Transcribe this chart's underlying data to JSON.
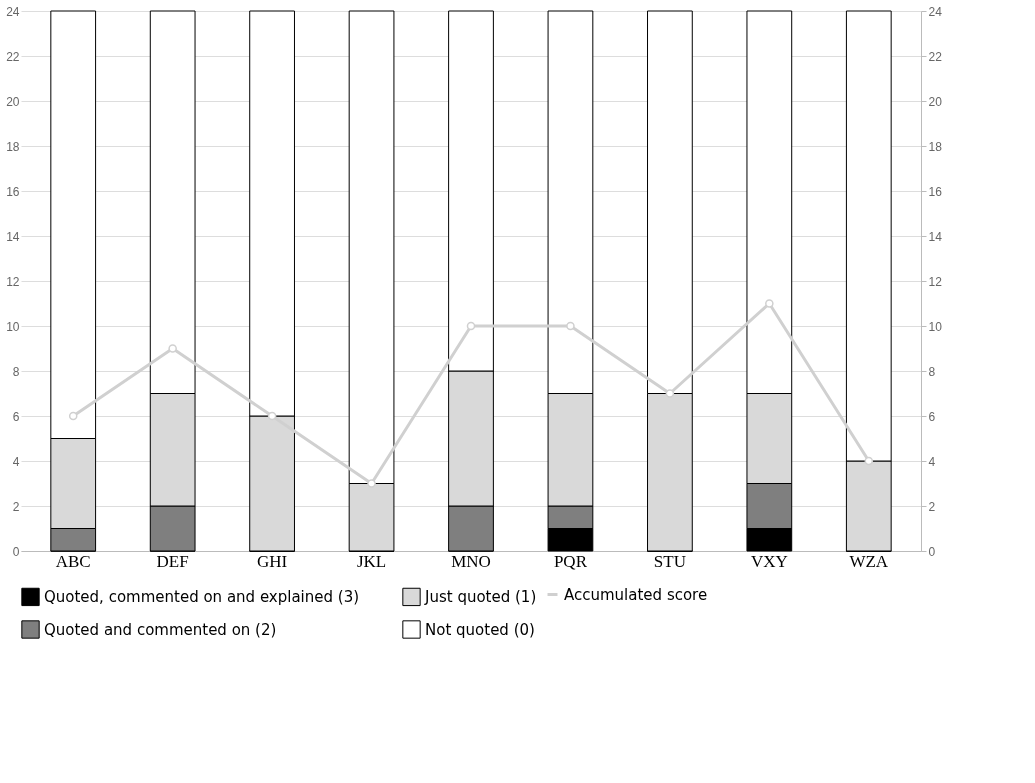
{
  "chart_data": {
    "type": "bar",
    "stacked": true,
    "categories": [
      "ABC",
      "DEF",
      "GHI",
      "JKL",
      "MNO",
      "PQR",
      "STU",
      "VXY",
      "WZA"
    ],
    "series": [
      {
        "name": "Quoted, commented on and explained (3)",
        "color": "#000000",
        "values": [
          0,
          0,
          0,
          0,
          0,
          1,
          0,
          1,
          0
        ]
      },
      {
        "name": "Quoted and commented on (2)",
        "color": "#7f7f7f",
        "values": [
          1,
          2,
          0,
          0,
          2,
          1,
          0,
          2,
          0
        ]
      },
      {
        "name": "Just quoted (1)",
        "color": "#d9d9d9",
        "values": [
          4,
          5,
          6,
          3,
          6,
          5,
          7,
          4,
          4
        ]
      },
      {
        "name": "Not quoted (0)",
        "color": "#ffffff",
        "values": [
          19,
          17,
          18,
          21,
          16,
          17,
          17,
          17,
          20
        ]
      },
      {
        "name": "Accumulated score",
        "type": "line",
        "axis": "y2",
        "color": "#d0d0d0",
        "marker": "circle",
        "values": [
          6,
          9,
          6,
          3,
          10,
          10,
          7,
          11,
          4
        ]
      }
    ],
    "ylim": [
      0,
      24
    ],
    "yticks": [
      0,
      2,
      4,
      6,
      8,
      10,
      12,
      14,
      16,
      18,
      20,
      22,
      24
    ],
    "y2lim": [
      0,
      24
    ],
    "y2ticks": [
      0,
      2,
      4,
      6,
      8,
      10,
      12,
      14,
      16,
      18,
      20,
      22,
      24
    ],
    "grid": "y",
    "legend": "bottom"
  }
}
